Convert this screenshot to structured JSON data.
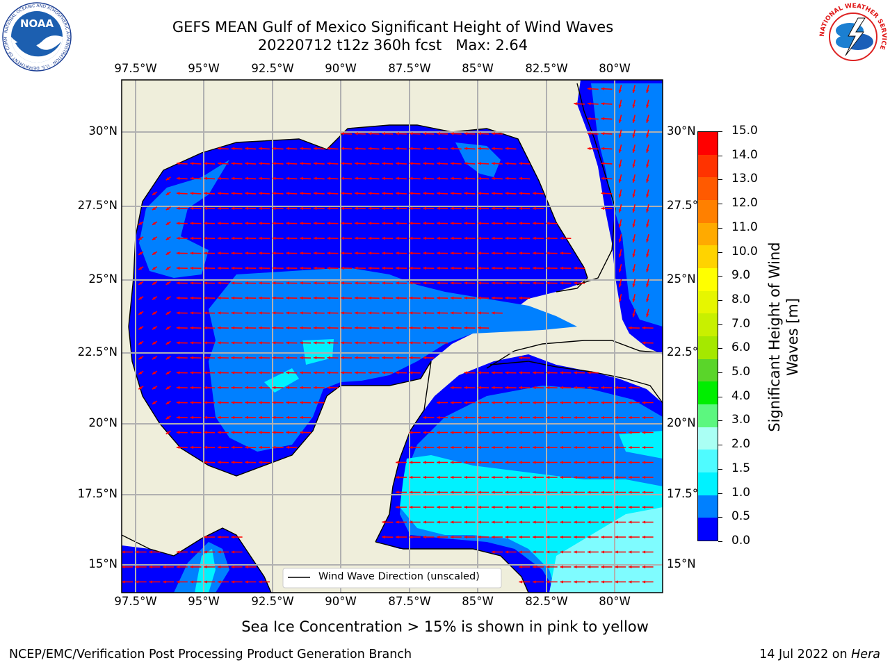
{
  "header": {
    "title_line1": "GEFS MEAN Gulf of Mexico Significant Height of Wind Waves",
    "title_line2": "20220712 t12z 360h fcst   Max: 2.64"
  },
  "logos": {
    "noaa": {
      "text": "NOAA",
      "ring_text": "NATIONAL OCEANIC AND ATMOSPHERIC ADMINISTRATION · U.S. DEPARTMENT OF COMMERCE"
    },
    "nws": {
      "ring_text": "NATIONAL WEATHER SERVICE"
    }
  },
  "map": {
    "lon_labels": [
      "97.5°W",
      "95°W",
      "92.5°W",
      "90°W",
      "87.5°W",
      "85°W",
      "82.5°W",
      "80°W"
    ],
    "lat_labels_left": [
      "30°N",
      "27.5°N",
      "25°N",
      "22.5°N",
      "20°N",
      "17.5°N",
      "15°N"
    ],
    "lat_labels_right": [
      "30°N",
      "27.5°N",
      "25°N",
      "22.5°N",
      "20°N",
      "17.5°N",
      "15°N"
    ],
    "legend_text": "Wind Wave Direction (unscaled)",
    "colors": {
      "land": "#efeedb",
      "coast": "#000000",
      "grid": "#b0b0b0",
      "arrow": "#ff0000",
      "shade_0": "#0000ff",
      "shade_1": "#0080ff",
      "shade_2": "#00f2ff",
      "shade_3": "#7ffcff"
    }
  },
  "colorbar": {
    "label": "Significant Height of Wind Waves [m]",
    "label_line1": "Significant Height of Wind",
    "label_line2": "Waves [m]",
    "ticks": [
      "15.0",
      "14.0",
      "13.0",
      "12.0",
      "11.0",
      "10.0",
      "9.0",
      "8.0",
      "7.0",
      "6.0",
      "5.0",
      "4.0",
      "3.0",
      "2.0",
      "1.5",
      "1.0",
      "0.5",
      "0.0"
    ],
    "colors_top_to_bottom": [
      "#ff0000",
      "#ff3300",
      "#ff5a00",
      "#ff8000",
      "#ffaa00",
      "#ffd300",
      "#ffff00",
      "#e6f600",
      "#c8f000",
      "#a5e800",
      "#5ad52a",
      "#00ee00",
      "#5cf77f",
      "#aafff4",
      "#4ffbff",
      "#00f2ff",
      "#0080ff",
      "#0000ff"
    ]
  },
  "footer": {
    "sea_ice_note": "Sea Ice Concentration > 15% is shown in pink to yellow",
    "credit": "NCEP/EMC/Verification Post Processing Product Generation Branch",
    "date_prefix": "14 Jul 2022 on ",
    "machine": "Hera"
  }
}
